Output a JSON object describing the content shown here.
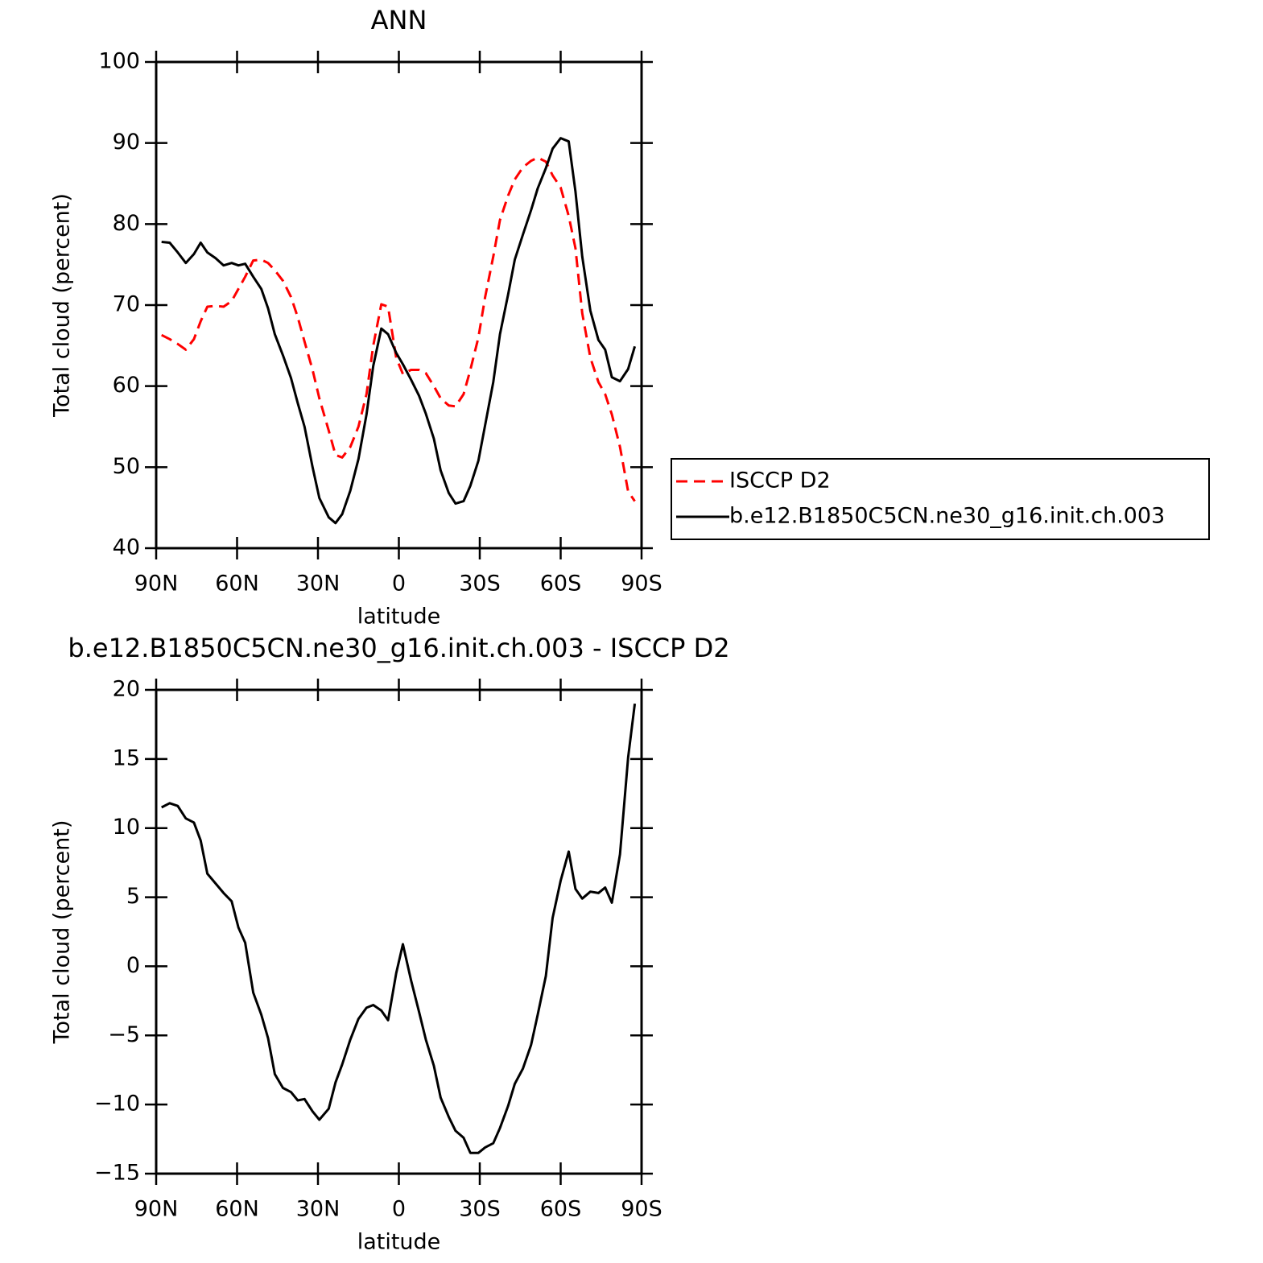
{
  "chart_data": [
    {
      "type": "line",
      "title": "ANN",
      "xlabel": "latitude",
      "ylabel": "Total cloud (percent)",
      "x": [
        88,
        85,
        82,
        79,
        76,
        73.5,
        71,
        68,
        65,
        62,
        59.5,
        57,
        54,
        51,
        48.5,
        46,
        43,
        40,
        37.5,
        35,
        32,
        29.5,
        26,
        23.5,
        21,
        18,
        15,
        12,
        9.5,
        6.5,
        4,
        1,
        -1.5,
        -4.5,
        -7.5,
        -10,
        -13,
        -15.5,
        -18.5,
        -21,
        -24,
        -26.5,
        -29.5,
        -32,
        -35,
        -37.5,
        -40.5,
        -43,
        -46,
        -49,
        -51.5,
        -54.5,
        -57,
        -60,
        -63,
        -65.5,
        -68,
        -71,
        -74,
        -76.5,
        -79,
        -82,
        -85,
        -87.5
      ],
      "series": [
        {
          "name": "ISCCP D2",
          "color": "#ff0000",
          "dashed": true,
          "values": [
            66.3,
            65.8,
            65.2,
            64.5,
            65.8,
            68,
            69.8,
            69.9,
            69.8,
            70.5,
            72,
            73.5,
            75.5,
            75.6,
            75.2,
            74.3,
            73,
            71,
            68.5,
            65.5,
            62,
            58.5,
            54.5,
            51.5,
            51.2,
            52.5,
            55,
            59,
            65,
            70.1,
            69.8,
            63.5,
            61.5,
            62,
            62,
            61.6,
            60,
            58.5,
            57.6,
            57.5,
            59,
            62,
            66,
            71,
            76,
            80.5,
            83.5,
            85.5,
            87,
            87.8,
            88.2,
            87.7,
            86,
            84.5,
            81,
            77,
            69,
            63.5,
            60.5,
            59,
            56.5,
            52.5,
            47,
            45.8
          ]
        },
        {
          "name": "b.e12.B1850C5CN.ne30_g16.init.ch.003",
          "color": "#000000",
          "dashed": false,
          "values": [
            77.8,
            77.7,
            76.5,
            75.2,
            76.3,
            77.7,
            76.5,
            75.8,
            74.9,
            75.2,
            74.9,
            75.1,
            73.5,
            72,
            69.6,
            66.4,
            63.8,
            61,
            57.9,
            55,
            50,
            46.2,
            43.8,
            43.1,
            44.2,
            47.1,
            51,
            56.5,
            62.5,
            67.1,
            66.4,
            64.1,
            62.7,
            60.8,
            58.8,
            56.6,
            53.5,
            49.6,
            46.8,
            45.5,
            45.8,
            47.7,
            50.8,
            55.2,
            60.5,
            66.4,
            71.3,
            75.6,
            78.7,
            81.7,
            84.4,
            86.9,
            89.3,
            90.6,
            90.2,
            84,
            76,
            69.3,
            65.7,
            64.5,
            61.1,
            60.6,
            62.1,
            64.9
          ]
        }
      ],
      "xlim": [
        90,
        -90
      ],
      "xticks": [
        {
          "value": 90,
          "label": "90N"
        },
        {
          "value": 60,
          "label": "60N"
        },
        {
          "value": 30,
          "label": "30N"
        },
        0,
        {
          "value": -30,
          "label": "30S"
        },
        {
          "value": -60,
          "label": "60S"
        },
        {
          "value": -90,
          "label": "90S"
        }
      ],
      "ylim": [
        40,
        100
      ],
      "yticks": [
        40,
        50,
        60,
        70,
        80,
        90,
        100
      ],
      "legend": "right"
    },
    {
      "type": "line",
      "title": "b.e12.B1850C5CN.ne30_g16.init.ch.003 - ISCCP D2",
      "xlabel": "latitude",
      "ylabel": "Total cloud (percent)",
      "x": [
        88,
        85,
        82,
        79,
        76,
        73.5,
        71,
        68,
        65,
        62,
        59.5,
        57,
        54,
        51,
        48.5,
        46,
        43,
        40,
        37.5,
        35,
        32,
        29.5,
        26,
        23.5,
        21,
        18,
        15,
        12,
        9.5,
        6.5,
        4,
        1,
        -1.5,
        -4.5,
        -7.5,
        -10,
        -13,
        -15.5,
        -18.5,
        -21,
        -24,
        -26.5,
        -29.5,
        -32,
        -35,
        -37.5,
        -40.5,
        -43,
        -46,
        -49,
        -51.5,
        -54.5,
        -57,
        -60,
        -63,
        -65.5,
        -68,
        -71,
        -74,
        -76.5,
        -79,
        -82,
        -85,
        -87.5
      ],
      "series": [
        {
          "color": "#000000",
          "dashed": false,
          "values": [
            11.5,
            11.8,
            11.6,
            10.7,
            10.4,
            9.1,
            6.7,
            6,
            5.3,
            4.7,
            2.8,
            1.7,
            -1.9,
            -3.5,
            -5.2,
            -7.8,
            -8.8,
            -9.1,
            -9.7,
            -9.6,
            -10.5,
            -11.1,
            -10.3,
            -8.4,
            -7.1,
            -5.3,
            -3.8,
            -3,
            -2.8,
            -3.2,
            -3.9,
            -0.5,
            1.6,
            -1,
            -3.3,
            -5.3,
            -7.2,
            -9.5,
            -10.9,
            -11.9,
            -12.4,
            -13.5,
            -13.5,
            -13.1,
            -12.8,
            -11.7,
            -10.1,
            -8.5,
            -7.4,
            -5.7,
            -3.5,
            -0.7,
            3.5,
            6.2,
            8.3,
            5.6,
            4.9,
            5.4,
            5.3,
            5.7,
            4.6,
            8.1,
            15.1,
            19
          ]
        }
      ],
      "xlim": [
        90,
        -90
      ],
      "xticks": [
        {
          "value": 90,
          "label": "90N"
        },
        {
          "value": 60,
          "label": "60N"
        },
        {
          "value": 30,
          "label": "30N"
        },
        0,
        {
          "value": -30,
          "label": "30S"
        },
        {
          "value": -60,
          "label": "60S"
        },
        {
          "value": -90,
          "label": "90S"
        }
      ],
      "ylim": [
        -15,
        20
      ],
      "yticks": [
        {
          "value": -15,
          "label": "−15"
        },
        {
          "value": -10,
          "label": "−10"
        },
        {
          "value": -5,
          "label": "−5"
        },
        0,
        5,
        10,
        15,
        20
      ]
    }
  ]
}
